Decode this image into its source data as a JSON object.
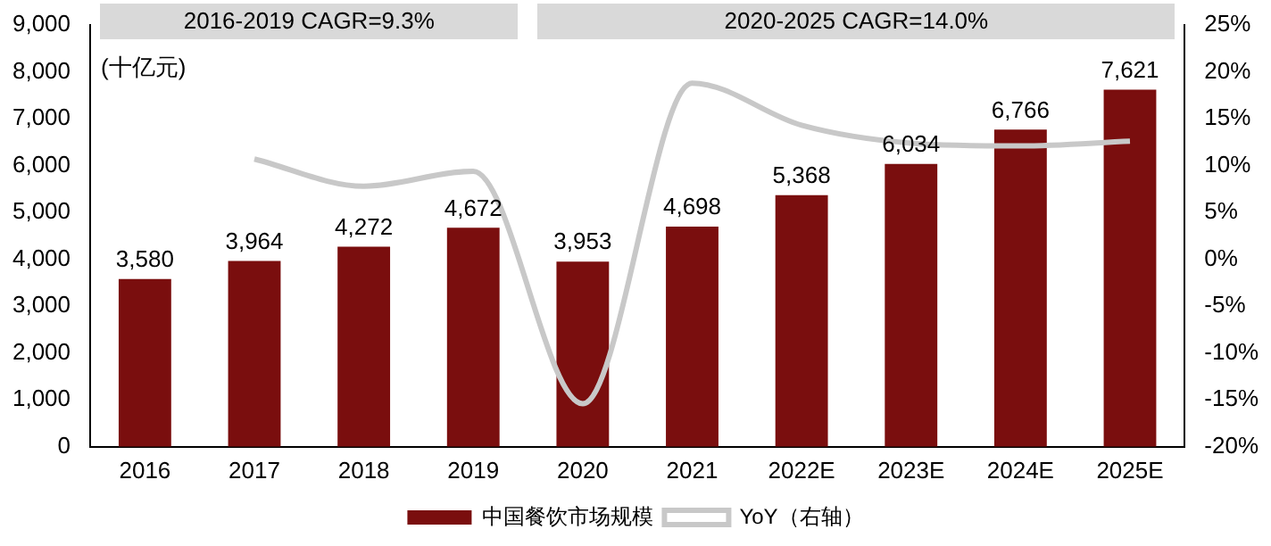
{
  "chart_data": {
    "type": "bar",
    "categories": [
      "2016",
      "2017",
      "2018",
      "2019",
      "2020",
      "2021",
      "2022E",
      "2023E",
      "2024E",
      "2025E"
    ],
    "ylabel": "(十亿元)",
    "series": [
      {
        "name": "中国餐饮市场规模",
        "color": "#7a0e0e",
        "values": [
          3580,
          3964,
          4272,
          4672,
          3953,
          4698,
          5368,
          6034,
          6766,
          7621
        ],
        "value_labels": [
          "3,580",
          "3,964",
          "4,272",
          "4,672",
          "3,953",
          "4,698",
          "5,368",
          "6,034",
          "6,766",
          "7,621"
        ]
      },
      {
        "name": "YoY（右轴）",
        "type": "line",
        "axis": "y2",
        "color": "#c8c8c8",
        "values": [
          null,
          10.7,
          7.8,
          9.4,
          -15.4,
          18.8,
          14.3,
          12.4,
          12.1,
          12.6
        ]
      }
    ],
    "ylim": [
      0,
      9000
    ],
    "yticks": [
      0,
      {
        "value": 1000,
        "label": "1,000"
      },
      {
        "value": 2000,
        "label": "2,000"
      },
      {
        "value": 3000,
        "label": "3,000"
      },
      {
        "value": 4000,
        "label": "4,000"
      },
      {
        "value": 5000,
        "label": "5,000"
      },
      {
        "value": 6000,
        "label": "6,000"
      },
      {
        "value": 7000,
        "label": "7,000"
      },
      {
        "value": 8000,
        "label": "8,000"
      },
      {
        "value": 9000,
        "label": "9,000"
      }
    ],
    "y2lim": [
      -20,
      25
    ],
    "y2ticks": [
      {
        "value": -20,
        "label": "-20%"
      },
      {
        "value": -15,
        "label": "-15%"
      },
      {
        "value": -10,
        "label": "-10%"
      },
      {
        "value": -5,
        "label": "-5%"
      },
      {
        "value": 0,
        "label": "0%"
      },
      {
        "value": 5,
        "label": "5%"
      },
      {
        "value": 10,
        "label": "10%"
      },
      {
        "value": 15,
        "label": "15%"
      },
      {
        "value": 20,
        "label": "20%"
      },
      {
        "value": 25,
        "label": "25%"
      }
    ],
    "annotations": [
      "2016-2019 CAGR=9.3%",
      "2020-2025 CAGR=14.0%"
    ],
    "grid": false,
    "legend": "bottom",
    "marker": "none",
    "line_style": "solid"
  }
}
